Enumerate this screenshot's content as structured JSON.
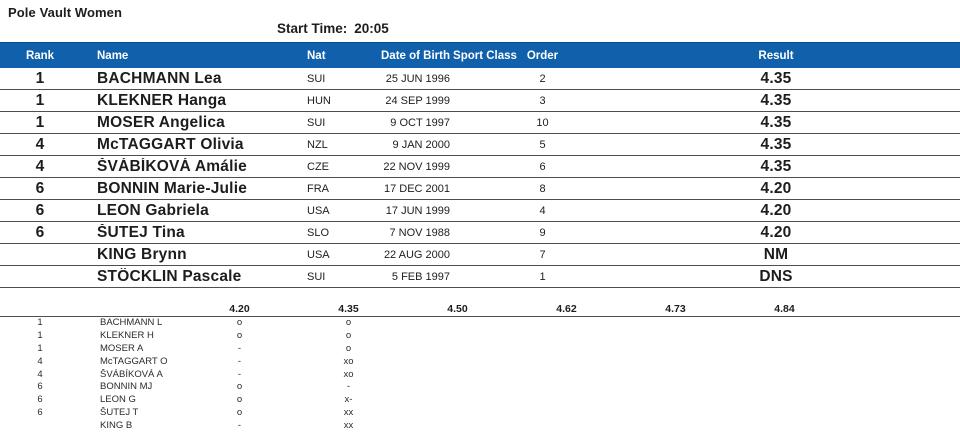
{
  "header": {
    "title": "Pole Vault Women",
    "start_time_label": "Start Time:",
    "start_time_value": "20:05"
  },
  "colors": {
    "header_bar": "#1060AC",
    "header_text": "#FFFFFF",
    "row_divider": "#4F4F4F",
    "body_text": "#1D1D1D"
  },
  "results": {
    "columns": {
      "rank": "Rank",
      "name": "Name",
      "nat": "Nat",
      "dob": "Date of Birth",
      "sport_class": "Sport Class",
      "order": "Order",
      "result": "Result"
    },
    "rows": [
      {
        "rank": "1",
        "name": "BACHMANN Lea",
        "nat": "SUI",
        "dob": "25 JUN 1996",
        "sport_class": "",
        "order": "2",
        "result": "4.35"
      },
      {
        "rank": "1",
        "name": "KLEKNER Hanga",
        "nat": "HUN",
        "dob": "24 SEP 1999",
        "sport_class": "",
        "order": "3",
        "result": "4.35"
      },
      {
        "rank": "1",
        "name": "MOSER Angelica",
        "nat": "SUI",
        "dob": "9 OCT 1997",
        "sport_class": "",
        "order": "10",
        "result": "4.35"
      },
      {
        "rank": "4",
        "name": "McTAGGART Olivia",
        "nat": "NZL",
        "dob": "9 JAN 2000",
        "sport_class": "",
        "order": "5",
        "result": "4.35"
      },
      {
        "rank": "4",
        "name": "ŠVÁBÍKOVÁ Amálie",
        "nat": "CZE",
        "dob": "22 NOV 1999",
        "sport_class": "",
        "order": "6",
        "result": "4.35"
      },
      {
        "rank": "6",
        "name": "BONNIN Marie-Julie",
        "nat": "FRA",
        "dob": "17 DEC 2001",
        "sport_class": "",
        "order": "8",
        "result": "4.20"
      },
      {
        "rank": "6",
        "name": "LEON Gabriela",
        "nat": "USA",
        "dob": "17 JUN 1999",
        "sport_class": "",
        "order": "4",
        "result": "4.20"
      },
      {
        "rank": "6",
        "name": "ŠUTEJ Tina",
        "nat": "SLO",
        "dob": "7 NOV 1988",
        "sport_class": "",
        "order": "9",
        "result": "4.20"
      },
      {
        "rank": "",
        "name": "KING Brynn",
        "nat": "USA",
        "dob": "22 AUG 2000",
        "sport_class": "",
        "order": "7",
        "result": "NM"
      },
      {
        "rank": "",
        "name": "STÖCKLIN Pascale",
        "nat": "SUI",
        "dob": "5 FEB 1997",
        "sport_class": "",
        "order": "1",
        "result": "DNS"
      }
    ]
  },
  "attempts": {
    "heights": [
      "4.20",
      "4.35",
      "4.50",
      "4.62",
      "4.73",
      "4.84"
    ],
    "rows": [
      {
        "rank": "1",
        "name": "BACHMANN L",
        "marks": [
          "o",
          "o",
          "",
          "",
          "",
          ""
        ]
      },
      {
        "rank": "1",
        "name": "KLEKNER H",
        "marks": [
          "o",
          "o",
          "",
          "",
          "",
          ""
        ]
      },
      {
        "rank": "1",
        "name": "MOSER A",
        "marks": [
          "-",
          "o",
          "",
          "",
          "",
          ""
        ]
      },
      {
        "rank": "4",
        "name": "McTAGGART O",
        "marks": [
          "-",
          "xo",
          "",
          "",
          "",
          ""
        ]
      },
      {
        "rank": "4",
        "name": "ŠVÁBÍKOVÁ A",
        "marks": [
          "-",
          "xo",
          "",
          "",
          "",
          ""
        ]
      },
      {
        "rank": "6",
        "name": "BONNIN MJ",
        "marks": [
          "o",
          "-",
          "",
          "",
          "",
          ""
        ]
      },
      {
        "rank": "6",
        "name": "LEON G",
        "marks": [
          "o",
          "x-",
          "",
          "",
          "",
          ""
        ]
      },
      {
        "rank": "6",
        "name": "ŠUTEJ T",
        "marks": [
          "o",
          "xx",
          "",
          "",
          "",
          ""
        ]
      },
      {
        "rank": "",
        "name": "KING B",
        "marks": [
          "-",
          "xx",
          "",
          "",
          "",
          ""
        ]
      }
    ]
  }
}
